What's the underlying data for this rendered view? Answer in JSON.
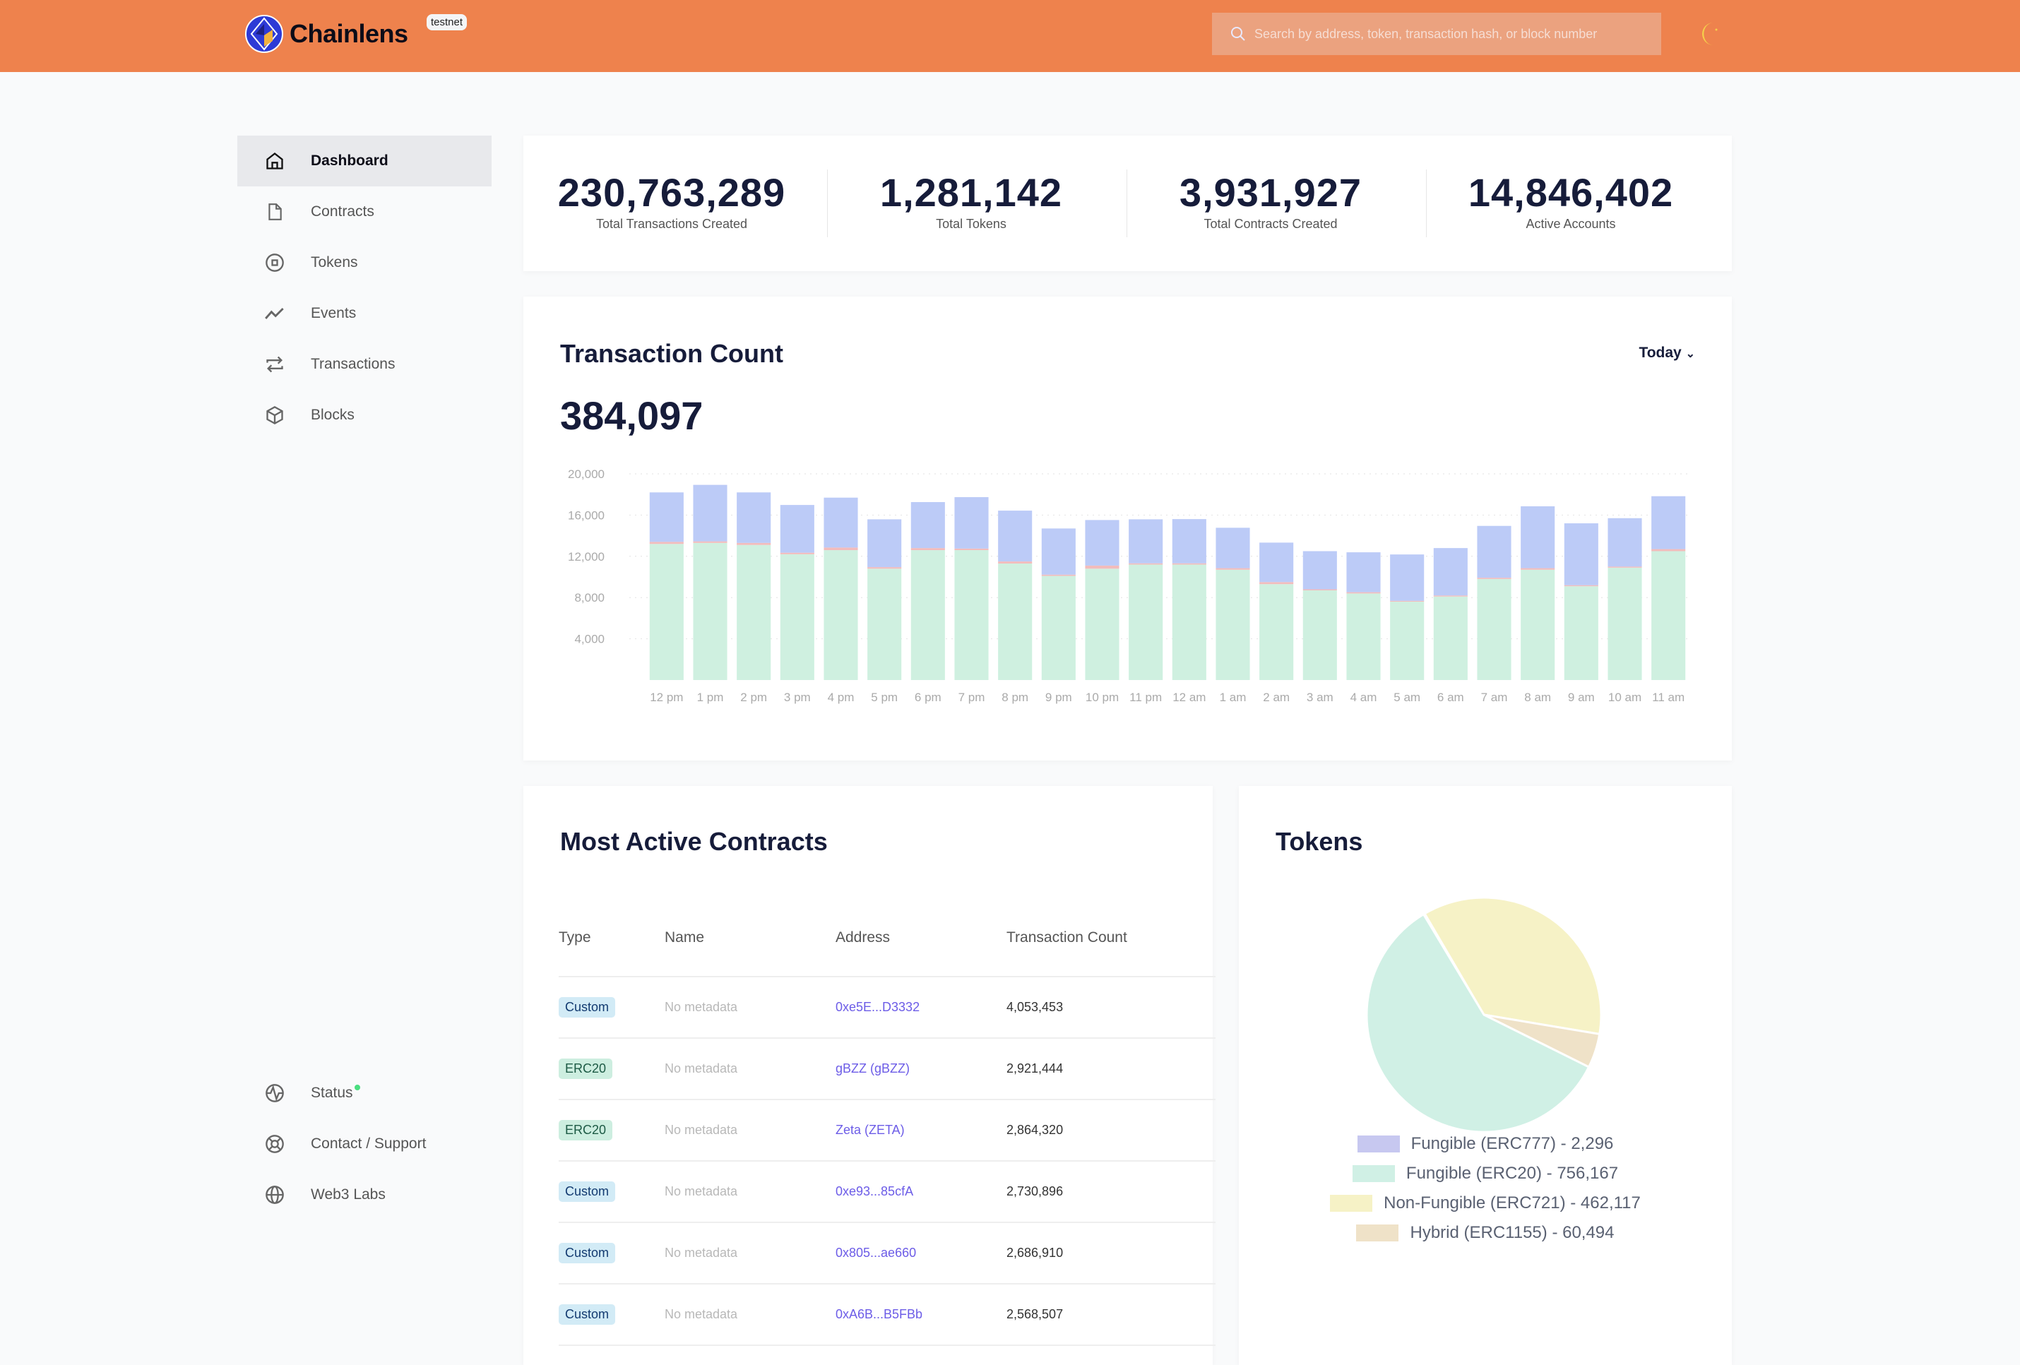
{
  "header": {
    "brand": "Chainlens",
    "badge": "testnet",
    "search_placeholder": "Search by address, token, transaction hash, or block number",
    "theme_icon": "moon-icon"
  },
  "sidebar": {
    "items": [
      {
        "label": "Dashboard",
        "icon": "home-icon",
        "active": true
      },
      {
        "label": "Contracts",
        "icon": "file-icon"
      },
      {
        "label": "Tokens",
        "icon": "token-icon"
      },
      {
        "label": "Events",
        "icon": "trend-icon"
      },
      {
        "label": "Transactions",
        "icon": "swap-icon"
      },
      {
        "label": "Blocks",
        "icon": "cube-icon"
      }
    ],
    "bottom": [
      {
        "label": "Status",
        "icon": "activity-icon"
      },
      {
        "label": "Contact / Support",
        "icon": "lifebuoy-icon"
      },
      {
        "label": "Web3 Labs",
        "icon": "globe-icon"
      }
    ]
  },
  "stats": [
    {
      "value": "230,763,289",
      "label": "Total Transactions Created"
    },
    {
      "value": "1,281,142",
      "label": "Total Tokens"
    },
    {
      "value": "3,931,927",
      "label": "Total Contracts Created"
    },
    {
      "value": "14,846,402",
      "label": "Active Accounts"
    }
  ],
  "tx_chart": {
    "title": "Transaction Count",
    "range": "Today",
    "total": "384,097"
  },
  "chart_data": [
    {
      "type": "bar",
      "stacked": true,
      "ylim": [
        0,
        20000
      ],
      "yticks": [
        "4,000",
        "8,000",
        "12,000",
        "16,000",
        "20,000"
      ],
      "grid": "horizontal-dotted",
      "categories": [
        "12 pm",
        "1 pm",
        "2 pm",
        "3 pm",
        "4 pm",
        "5 pm",
        "6 pm",
        "7 pm",
        "8 pm",
        "9 pm",
        "10 pm",
        "11 pm",
        "12 am",
        "1 am",
        "2 am",
        "3 am",
        "4 am",
        "5 am",
        "6 am",
        "7 am",
        "8 am",
        "9 am",
        "10 am",
        "11 am"
      ],
      "series": [
        {
          "color": "#cff0e0",
          "values": [
            13200,
            13300,
            13100,
            12200,
            12600,
            10800,
            12600,
            12600,
            11300,
            10100,
            10800,
            11200,
            11200,
            10700,
            9300,
            8700,
            8400,
            7600,
            8100,
            9800,
            10700,
            9100,
            10900,
            12500
          ]
        },
        {
          "color": "#f2bcbc",
          "values": [
            200,
            150,
            200,
            150,
            250,
            150,
            200,
            150,
            200,
            120,
            300,
            120,
            120,
            150,
            200,
            100,
            120,
            80,
            100,
            120,
            150,
            100,
            100,
            200
          ]
        },
        {
          "color": "#bccbf7",
          "values": [
            4800,
            5480,
            4900,
            4630,
            4840,
            4640,
            4460,
            4990,
            4930,
            4480,
            4420,
            4270,
            4290,
            3920,
            3830,
            3700,
            3870,
            4500,
            4600,
            5030,
            6000,
            6000,
            4700,
            5130
          ]
        }
      ]
    },
    {
      "type": "pie",
      "title": "Tokens",
      "legend": "bottom",
      "slices": [
        {
          "label": "Fungible (ERC777) - 2,296",
          "value": 2296,
          "color": "#c7c8f0"
        },
        {
          "label": "Non-Fungible (ERC721) - 462,117",
          "value": 462117,
          "color": "#f6f2c6"
        },
        {
          "label": "Hybrid (ERC1155) - 60,494",
          "value": 60494,
          "color": "#efe2c8"
        },
        {
          "label": "Fungible (ERC20) - 756,167",
          "value": 756167,
          "color": "#d0f0e5"
        }
      ],
      "legend_order": [
        0,
        3,
        1,
        2
      ]
    }
  ],
  "contracts": {
    "title": "Most Active Contracts",
    "columns": [
      "Type",
      "Name",
      "Address",
      "Transaction Count"
    ],
    "rows": [
      {
        "type": "Custom",
        "name": "No metadata",
        "address": "0xe5E...D3332",
        "count": "4,053,453"
      },
      {
        "type": "ERC20",
        "name": "No metadata",
        "address": "gBZZ (gBZZ)",
        "count": "2,921,444"
      },
      {
        "type": "ERC20",
        "name": "No metadata",
        "address": "Zeta (ZETA)",
        "count": "2,864,320"
      },
      {
        "type": "Custom",
        "name": "No metadata",
        "address": "0xe93...85cfA",
        "count": "2,730,896"
      },
      {
        "type": "Custom",
        "name": "No metadata",
        "address": "0x805...ae660",
        "count": "2,686,910"
      },
      {
        "type": "Custom",
        "name": "No metadata",
        "address": "0xA6B...B5FBb",
        "count": "2,568,507"
      }
    ]
  },
  "colors": {
    "header": "#ee824d",
    "status_dot": "#4ade80",
    "link": "#6c5ce7"
  }
}
